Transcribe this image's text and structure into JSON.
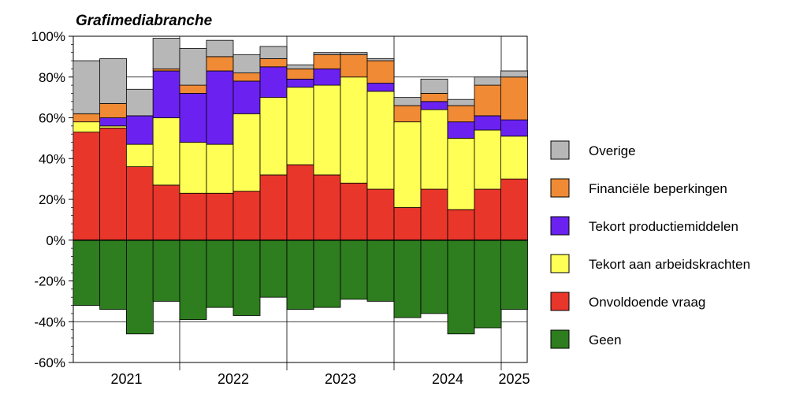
{
  "chart_data": {
    "type": "bar",
    "stacked": true,
    "title": "Grafimediabranche",
    "ylim": [
      -60,
      100
    ],
    "yticks": [
      "-60%",
      "-40%",
      "-20%",
      "0%",
      "20%",
      "40%",
      "60%",
      "80%",
      "100%"
    ],
    "ytick_values": [
      -60,
      -40,
      -20,
      0,
      20,
      40,
      60,
      80,
      100
    ],
    "grid": true,
    "legend_position": "right",
    "year_groups": [
      {
        "label": "2021",
        "count": 4
      },
      {
        "label": "2022",
        "count": 4
      },
      {
        "label": "2023",
        "count": 4
      },
      {
        "label": "2024",
        "count": 4
      },
      {
        "label": "2025",
        "count": 1
      }
    ],
    "series": [
      {
        "name": "Geen",
        "color": "#2e7d1f",
        "values": [
          -32,
          -34,
          -46,
          -30,
          -39,
          -33,
          -37,
          -28,
          -34,
          -33,
          -29,
          -30,
          -38,
          -36,
          -46,
          -43,
          -34
        ]
      },
      {
        "name": "Onvoldoende vraag",
        "color": "#e8362a",
        "values": [
          53,
          55,
          36,
          27,
          23,
          23,
          24,
          32,
          37,
          32,
          28,
          25,
          16,
          25,
          15,
          25,
          30
        ]
      },
      {
        "name": "Tekort aan arbeidskrachten",
        "color": "#ffff55",
        "values": [
          5,
          1,
          11,
          33,
          25,
          24,
          38,
          38,
          38,
          44,
          52,
          48,
          42,
          39,
          35,
          29,
          21
        ]
      },
      {
        "name": "Tekort productiemiddelen",
        "color": "#6b22f0",
        "values": [
          0,
          4,
          14,
          23,
          24,
          36,
          16,
          15,
          4,
          8,
          0,
          4,
          0,
          4,
          8,
          7,
          8
        ]
      },
      {
        "name": "Financiële beperkingen",
        "color": "#f08a35",
        "values": [
          4,
          7,
          0,
          1,
          4,
          7,
          4,
          4,
          5,
          7,
          11,
          11,
          8,
          4,
          8,
          15,
          21
        ]
      },
      {
        "name": "Overige",
        "color": "#b7b7b7",
        "values": [
          26,
          22,
          13,
          15,
          18,
          8,
          9,
          6,
          2,
          1,
          1,
          1,
          4,
          7,
          3,
          4,
          3
        ]
      }
    ]
  }
}
